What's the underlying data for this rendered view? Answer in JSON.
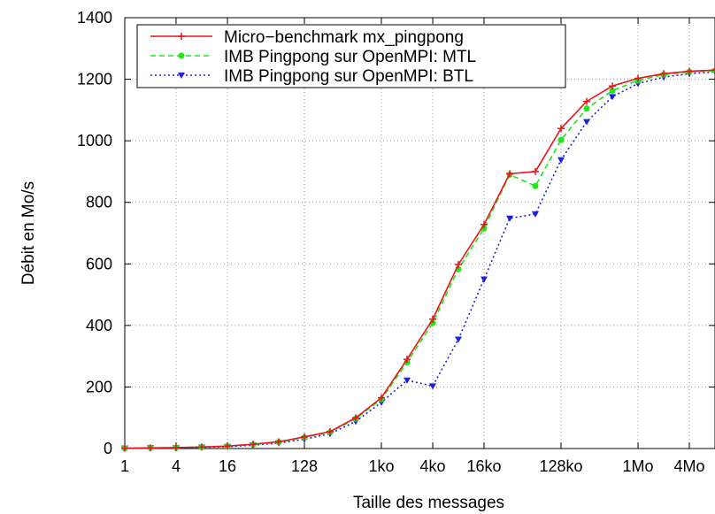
{
  "chart_data": {
    "type": "line",
    "title": "",
    "xlabel": "Taille des messages",
    "ylabel": "Débit en Mo/s",
    "x_scale": "log2",
    "x": [
      1,
      2,
      4,
      8,
      16,
      32,
      64,
      128,
      256,
      512,
      1024,
      2048,
      4096,
      8192,
      16384,
      32768,
      65536,
      131072,
      262144,
      524288,
      1048576,
      2097152,
      4194304,
      8388608
    ],
    "xticks": [
      {
        "value": 1,
        "label": "1"
      },
      {
        "value": 4,
        "label": "4"
      },
      {
        "value": 16,
        "label": "16"
      },
      {
        "value": 128,
        "label": "128"
      },
      {
        "value": 1024,
        "label": "1ko"
      },
      {
        "value": 4096,
        "label": "4ko"
      },
      {
        "value": 16384,
        "label": "16ko"
      },
      {
        "value": 131072,
        "label": "128ko"
      },
      {
        "value": 1048576,
        "label": "1Mo"
      },
      {
        "value": 4194304,
        "label": "4Mo"
      }
    ],
    "xlim": [
      1,
      8388608
    ],
    "ylim": [
      0,
      1400
    ],
    "yticks": [
      0,
      200,
      400,
      600,
      800,
      1000,
      1200,
      1400
    ],
    "grid": true,
    "legend_position": "top-left",
    "series": [
      {
        "name": "Micro−benchmark mx_pingpong",
        "color": "#e8141c",
        "marker": "plus",
        "dash": "solid",
        "values": [
          1,
          2,
          3,
          5,
          8,
          14,
          22,
          38,
          55,
          100,
          165,
          290,
          420,
          598,
          728,
          893,
          900,
          1040,
          1128,
          1178,
          1203,
          1218,
          1226,
          1230
        ]
      },
      {
        "name": "IMB Pingpong sur OpenMPI: MTL",
        "color": "#1ee81a",
        "marker": "circle",
        "dash": "dashed",
        "values": [
          1,
          2,
          3,
          5,
          8,
          13,
          21,
          36,
          53,
          97,
          160,
          280,
          408,
          583,
          715,
          890,
          853,
          1003,
          1105,
          1163,
          1196,
          1215,
          1224,
          1228
        ]
      },
      {
        "name": "IMB Pingpong sur OpenMPI: BTL",
        "color": "#1d20e0",
        "marker": "triangle-down",
        "dash": "dotted",
        "values": [
          1,
          2,
          2,
          4,
          6,
          11,
          18,
          30,
          48,
          88,
          150,
          222,
          203,
          355,
          550,
          748,
          762,
          938,
          1062,
          1143,
          1186,
          1207,
          1218,
          1224
        ]
      }
    ]
  }
}
